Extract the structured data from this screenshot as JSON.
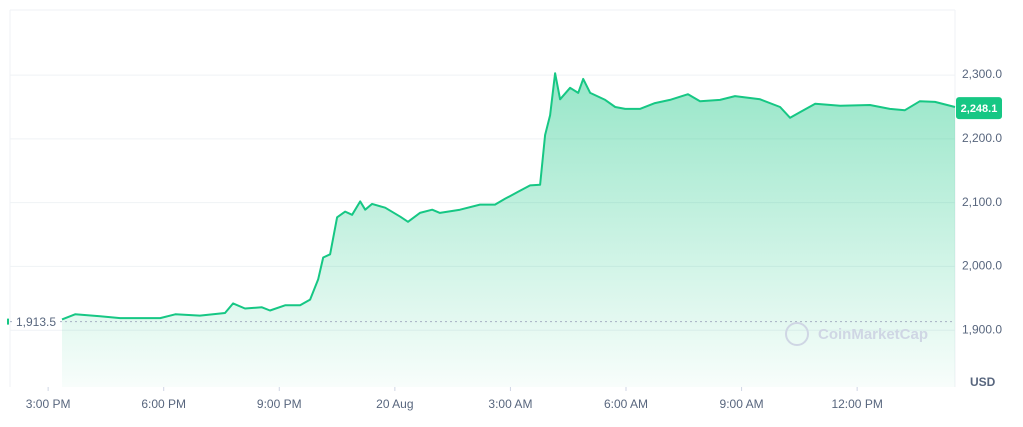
{
  "chart_data": {
    "type": "line",
    "color": "#16c784",
    "x": [
      0.36,
      0.7,
      1.35,
      1.87,
      2.91,
      3.3,
      3.94,
      4.59,
      4.8,
      5.11,
      5.55,
      5.76,
      6.15,
      6.54,
      6.8,
      7.01,
      7.14,
      7.32,
      7.5,
      7.71,
      7.89,
      8.1,
      8.23,
      8.41,
      8.75,
      9.14,
      9.34,
      9.65,
      9.97,
      10.17,
      10.69,
      11.21,
      11.6,
      11.86,
      12.2,
      12.51,
      12.77,
      12.9,
      13.03,
      13.16,
      13.29,
      13.55,
      13.76,
      13.89,
      14.07,
      14.46,
      14.72,
      14.98,
      15.36,
      15.75,
      16.14,
      16.61,
      16.92,
      17.44,
      17.83,
      18.48,
      19.0,
      19.26,
      19.52,
      19.91,
      20.56,
      21.33,
      21.85,
      22.24,
      22.63,
      23.02,
      23.54
    ],
    "values": [
      1917,
      1925,
      1922,
      1919,
      1919,
      1925,
      1923,
      1927,
      1942,
      1934,
      1936,
      1931,
      1939,
      1939,
      1948,
      1980,
      2014,
      2019,
      2077,
      2086,
      2081,
      2102,
      2089,
      2098,
      2092,
      2078,
      2070,
      2084,
      2089,
      2084,
      2089,
      2097,
      2097,
      2106,
      2117,
      2127,
      2128,
      2206,
      2237,
      2303,
      2262,
      2280,
      2272,
      2294,
      2272,
      2261,
      2250,
      2247,
      2247,
      2256,
      2261,
      2270,
      2259,
      2261,
      2267,
      2262,
      2250,
      2233,
      2242,
      2255,
      2252,
      2253,
      2247,
      2245,
      2259,
      2258,
      2250
    ],
    "xlim": [
      -0.99,
      23.54
    ],
    "ylim": [
      1811,
      2402
    ],
    "xticks": [
      {
        "value": 0,
        "label": "3:00 PM"
      },
      {
        "value": 3,
        "label": "6:00 PM"
      },
      {
        "value": 6,
        "label": "9:00 PM"
      },
      {
        "value": 9,
        "label": "20 Aug"
      },
      {
        "value": 12,
        "label": "3:00 AM"
      },
      {
        "value": 15,
        "label": "6:00 AM"
      },
      {
        "value": 18,
        "label": "9:00 AM"
      },
      {
        "value": 21,
        "label": "12:00 PM"
      }
    ],
    "yticks": [
      {
        "value": 1900,
        "label": "1,900.0"
      },
      {
        "value": 2000,
        "label": "2,000.0"
      },
      {
        "value": 2100,
        "label": "2,100.0"
      },
      {
        "value": 2200,
        "label": "2,200.0"
      },
      {
        "value": 2300,
        "label": "2,300.0"
      }
    ],
    "grid": true,
    "reference": {
      "value": 1913.5,
      "label": "1,913.5"
    },
    "last_price": {
      "value": 2248.1,
      "label": "2,248.1"
    },
    "unit": "USD",
    "watermark": "CoinMarketCap"
  }
}
